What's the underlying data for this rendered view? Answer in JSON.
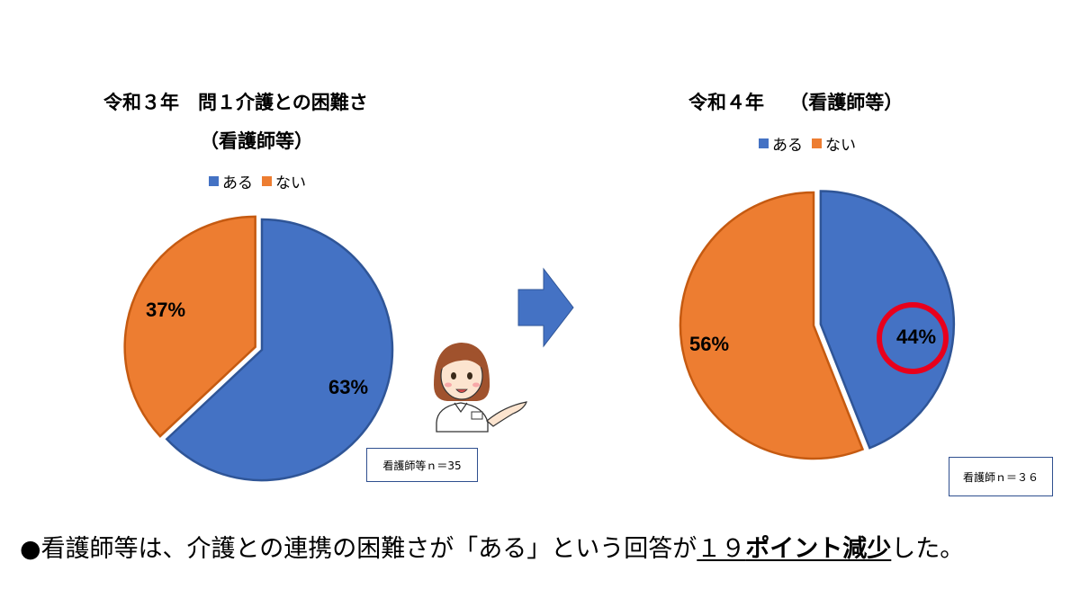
{
  "colors": {
    "blue": "#4472C4",
    "orange": "#ED7D31",
    "blue_edge": "#2F5597",
    "orange_edge": "#C55A11",
    "circle": "#E8001C",
    "arrow": "#4472C4"
  },
  "chart_data": [
    {
      "type": "pie",
      "title_line1": "令和３年　問１介護との困難さ",
      "title_line2": "（看護師等）",
      "legend": [
        "ある",
        "ない"
      ],
      "categories": [
        "ある",
        "ない"
      ],
      "values": [
        63,
        37
      ],
      "labels": [
        "63%",
        "37%"
      ],
      "note": "看護師等ｎ＝35",
      "exploded": "ない"
    },
    {
      "type": "pie",
      "title_line1": "令和４年　 （看護師等）",
      "legend": [
        "ある",
        "ない"
      ],
      "categories": [
        "ある",
        "ない"
      ],
      "values": [
        44,
        56
      ],
      "labels": [
        "44%",
        "56%"
      ],
      "note": "看護師ｎ＝３６",
      "highlighted": "ある",
      "exploded": "ある"
    }
  ],
  "footer": {
    "bullet": "●",
    "text": "看護師等は、介護との連携の困難さが「ある」という回答が",
    "number": "１９",
    "emphasis": "ポイント減少",
    "tail": "した。"
  },
  "decor": {
    "arrow": "right-arrow-icon",
    "nurse": "nurse-illustration"
  }
}
